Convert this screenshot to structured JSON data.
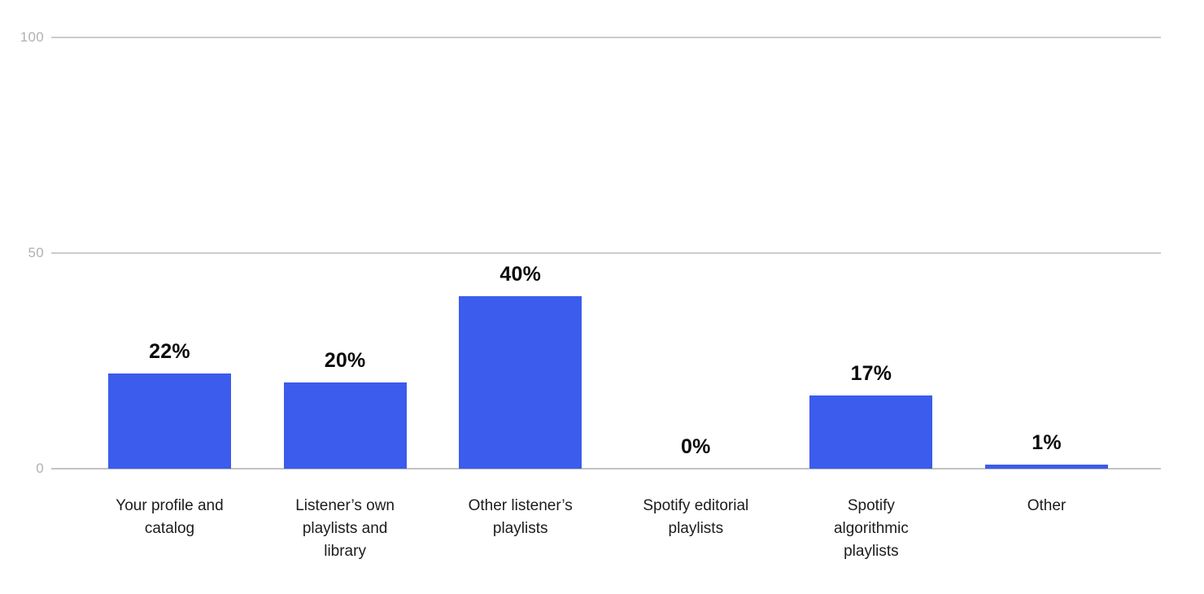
{
  "chart_data": {
    "type": "bar",
    "title": "",
    "xlabel": "",
    "ylabel": "",
    "categories": [
      "Your profile and catalog",
      "Listener’s own playlists and library",
      "Other listener’s playlists",
      "Spotify editorial playlists",
      "Spotify algorithmic playlists",
      "Other"
    ],
    "categories_display": [
      "Your profile and\ncatalog",
      "Listener’s own\nplaylists and\nlibrary",
      "Other listener’s\nplaylists",
      "Spotify editorial\nplaylists",
      "Spotify\nalgorithmic\nplaylists",
      "Other"
    ],
    "values": [
      22,
      20,
      40,
      0,
      17,
      1
    ],
    "value_labels": [
      "22%",
      "20%",
      "40%",
      "0%",
      "17%",
      "1%"
    ],
    "ylim": [
      0,
      100
    ],
    "yticks": [
      0,
      50,
      100
    ],
    "ytick_labels": [
      "0",
      "50",
      "100"
    ],
    "grid": true,
    "legend": false,
    "colors": {
      "bar": "#3b5cec",
      "gridline": "#cccccc",
      "tick_label": "#b1b1b1",
      "value_label": "#0b0b0b",
      "category_label": "#1c1c1c",
      "background": "#ffffff"
    }
  }
}
